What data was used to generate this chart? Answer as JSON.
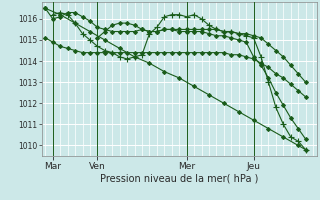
{
  "background_color": "#cce8e8",
  "grid_color": "#b0d4d4",
  "line_color": "#1a5c1a",
  "title": "Pression niveau de la mer( hPa )",
  "ylim": [
    1009.5,
    1016.8
  ],
  "yticks": [
    1010,
    1011,
    1012,
    1013,
    1014,
    1015,
    1016
  ],
  "xtick_labels": [
    "Mar",
    "Ven",
    "Mer",
    "Jeu"
  ],
  "xtick_positions": [
    2,
    14,
    38,
    56
  ],
  "vline_positions": [
    2,
    14,
    38,
    56
  ],
  "total_points": 72,
  "series": [
    {
      "x": [
        0,
        2,
        4,
        6,
        8,
        10,
        12,
        14,
        16,
        18,
        20,
        22,
        24,
        26,
        28,
        30,
        32,
        34,
        36,
        38,
        40,
        42,
        44,
        46,
        48,
        50,
        52,
        54,
        56,
        58,
        60,
        62,
        64,
        66,
        68,
        70
      ],
      "y": [
        1016.5,
        1016.0,
        1016.1,
        1016.3,
        1016.3,
        1016.1,
        1015.9,
        1015.6,
        1015.5,
        1015.4,
        1015.4,
        1015.4,
        1015.4,
        1015.5,
        1015.4,
        1015.4,
        1015.5,
        1015.5,
        1015.5,
        1015.5,
        1015.5,
        1015.5,
        1015.5,
        1015.5,
        1015.4,
        1015.4,
        1015.3,
        1015.3,
        1015.2,
        1015.1,
        1014.8,
        1014.5,
        1014.2,
        1013.8,
        1013.4,
        1013.0
      ],
      "marker": "D",
      "markersize": 2.0,
      "linewidth": 0.8
    },
    {
      "x": [
        0,
        2,
        4,
        6,
        8,
        10,
        12,
        14,
        16,
        18,
        20,
        22,
        24,
        26,
        28,
        30,
        32,
        34,
        36,
        38,
        40,
        42,
        44,
        46,
        48,
        50,
        52,
        54,
        56,
        58,
        60,
        62,
        64,
        66,
        68,
        70
      ],
      "y": [
        1015.1,
        1014.9,
        1014.7,
        1014.6,
        1014.5,
        1014.4,
        1014.4,
        1014.4,
        1014.4,
        1014.4,
        1014.4,
        1014.4,
        1014.4,
        1014.4,
        1014.4,
        1014.4,
        1014.4,
        1014.4,
        1014.4,
        1014.4,
        1014.4,
        1014.4,
        1014.4,
        1014.4,
        1014.4,
        1014.3,
        1014.3,
        1014.2,
        1014.1,
        1013.9,
        1013.7,
        1013.4,
        1013.2,
        1012.9,
        1012.6,
        1012.3
      ],
      "marker": "D",
      "markersize": 2.0,
      "linewidth": 0.8
    },
    {
      "x": [
        2,
        4,
        6,
        8,
        10,
        12,
        14,
        16,
        18,
        20,
        22,
        24,
        26,
        28,
        30,
        32,
        34,
        36,
        38,
        40,
        42,
        44,
        46,
        48,
        50,
        52,
        54,
        56,
        58,
        60,
        62,
        64,
        66,
        68,
        70
      ],
      "y": [
        1016.2,
        1016.3,
        1016.2,
        1015.8,
        1015.3,
        1015.0,
        1014.7,
        1014.5,
        1014.4,
        1014.2,
        1014.1,
        1014.2,
        1014.3,
        1015.3,
        1015.6,
        1016.1,
        1016.2,
        1016.2,
        1016.1,
        1016.2,
        1016.0,
        1015.7,
        1015.5,
        1015.4,
        1015.4,
        1015.3,
        1015.2,
        1015.1,
        1014.2,
        1013.0,
        1011.8,
        1011.0,
        1010.4,
        1010.2,
        1009.8
      ],
      "marker": "+",
      "markersize": 4,
      "linewidth": 0.8
    },
    {
      "x": [
        14,
        16,
        18,
        20,
        22,
        24,
        26,
        28,
        30,
        32,
        34,
        36,
        38,
        40,
        42,
        44,
        46,
        48,
        50,
        52,
        54,
        56,
        58,
        60,
        62,
        64,
        66,
        68,
        70
      ],
      "y": [
        1015.1,
        1015.4,
        1015.7,
        1015.8,
        1015.8,
        1015.7,
        1015.5,
        1015.4,
        1015.4,
        1015.5,
        1015.5,
        1015.4,
        1015.4,
        1015.4,
        1015.4,
        1015.3,
        1015.2,
        1015.2,
        1015.1,
        1015.0,
        1014.9,
        1014.2,
        1013.8,
        1013.2,
        1012.5,
        1011.9,
        1011.3,
        1010.8,
        1010.3
      ],
      "marker": "D",
      "markersize": 2.0,
      "linewidth": 0.8
    },
    {
      "x": [
        0,
        4,
        8,
        12,
        16,
        20,
        24,
        28,
        32,
        36,
        40,
        44,
        48,
        52,
        56,
        60,
        64,
        68,
        70
      ],
      "y": [
        1016.5,
        1016.2,
        1015.8,
        1015.4,
        1015.0,
        1014.6,
        1014.2,
        1013.9,
        1013.5,
        1013.2,
        1012.8,
        1012.4,
        1012.0,
        1011.6,
        1011.2,
        1010.8,
        1010.4,
        1010.0,
        1009.8
      ],
      "marker": "D",
      "markersize": 2.0,
      "linewidth": 0.8
    }
  ]
}
